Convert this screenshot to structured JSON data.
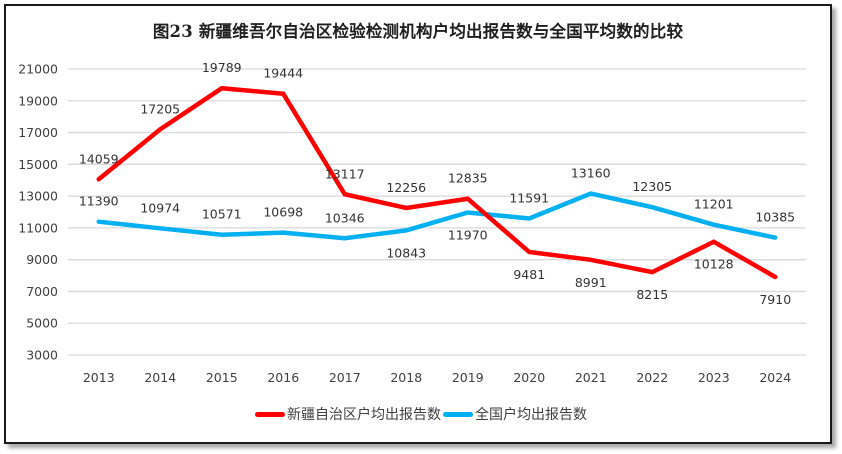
{
  "chart_data": {
    "type": "line",
    "title": "图23 新疆维吾尔自治区检验检测机构户均出报告数与全国平均数的比较",
    "xlabel": "",
    "ylabel": "",
    "x": [
      "2013",
      "2014",
      "2015",
      "2016",
      "2017",
      "2018",
      "2019",
      "2020",
      "2021",
      "2022",
      "2023",
      "2024"
    ],
    "ylim": [
      3000,
      21000
    ],
    "yticks": [
      3000,
      5000,
      7000,
      9000,
      11000,
      13000,
      15000,
      17000,
      19000,
      21000
    ],
    "grid": true,
    "legend_position": "bottom",
    "series": [
      {
        "name": "新疆自治区户均出报告数",
        "color": "#ff0000",
        "values": [
          14059,
          17205,
          19789,
          19444,
          13117,
          12256,
          12835,
          9481,
          8991,
          8215,
          10128,
          7910
        ],
        "label_position": [
          "above",
          "above",
          "above",
          "above",
          "above",
          "above",
          "above",
          "below",
          "below",
          "below",
          "below",
          "below"
        ]
      },
      {
        "name": "全国户均出报告数",
        "color": "#00b0f0",
        "values": [
          11390,
          10974,
          10571,
          10698,
          10346,
          10843,
          11970,
          11591,
          13160,
          12305,
          11201,
          10385
        ],
        "label_position": [
          "above",
          "above",
          "above",
          "above",
          "above",
          "below",
          "below",
          "above",
          "above",
          "above",
          "above",
          "above"
        ]
      }
    ]
  }
}
